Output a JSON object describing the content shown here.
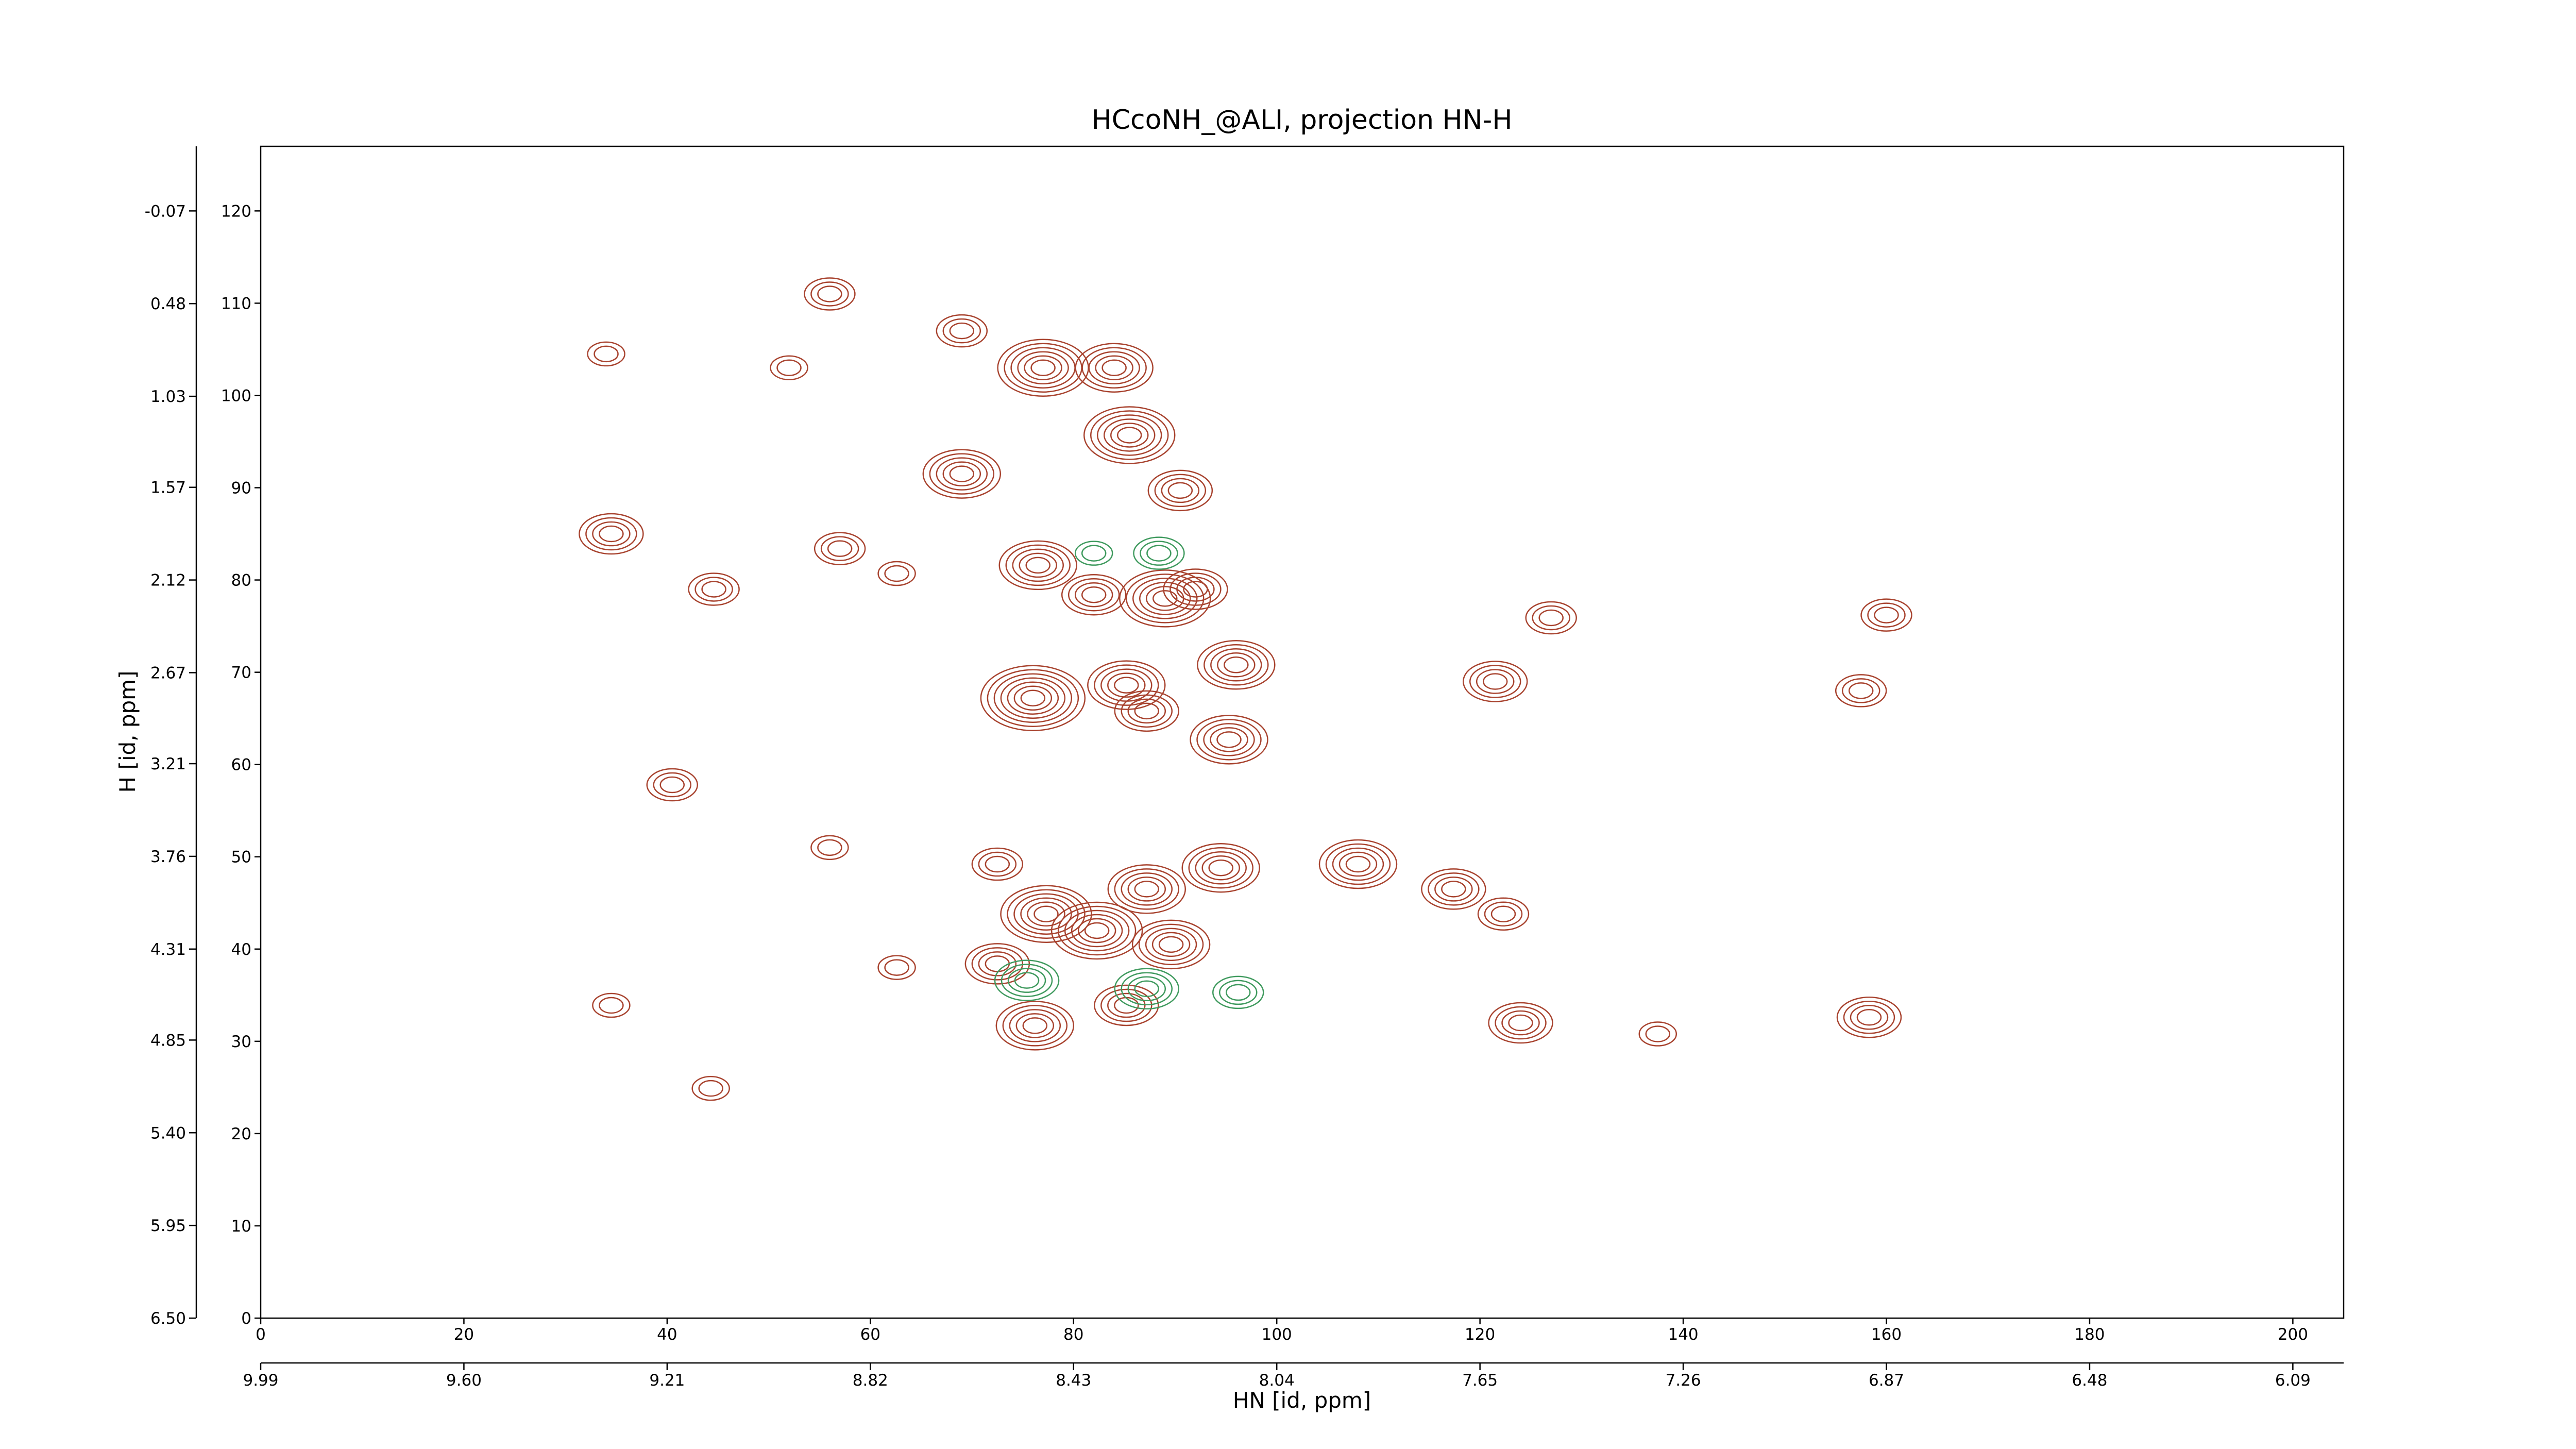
{
  "chart_data": {
    "type": "contour",
    "title": "HCcoNH_@ALI, projection HN-H",
    "xlabel": "HN [id, ppm]",
    "ylabel": "H [id, ppm]",
    "xlim": [
      0,
      205
    ],
    "xticks": [
      0,
      20,
      40,
      60,
      80,
      100,
      120,
      140,
      160,
      180,
      200
    ],
    "ylim": [
      0,
      127
    ],
    "yticks": [
      0,
      10,
      20,
      30,
      40,
      50,
      60,
      70,
      80,
      90,
      100,
      110,
      120
    ],
    "x2lim": [
      9.99,
      5.9925
    ],
    "x2ticks": [
      9.99,
      {
        "value": 9.6,
        "label": "9.60"
      },
      9.21,
      8.82,
      8.43,
      8.04,
      7.65,
      7.26,
      6.87,
      6.48,
      6.09
    ],
    "y2lim": [
      6.5,
      -0.4533
    ],
    "y2ticks": [
      {
        "value": 6.5,
        "label": "6.50"
      },
      5.95,
      {
        "value": 5.4,
        "label": "5.40"
      },
      4.85,
      4.31,
      3.76,
      3.21,
      2.67,
      2.12,
      1.57,
      1.03,
      0.48,
      -0.07
    ],
    "series": [
      {
        "color": "#a8432f",
        "peaks": [
          [
            34.5,
            85,
            4
          ],
          [
            44.6,
            79,
            3
          ],
          [
            34,
            104.5,
            2
          ],
          [
            56,
            111,
            3
          ],
          [
            52,
            103,
            2
          ],
          [
            69,
            107,
            3
          ],
          [
            77,
            103,
            6
          ],
          [
            84,
            103,
            5
          ],
          [
            69,
            91.5,
            5
          ],
          [
            85.5,
            95.7,
            6
          ],
          [
            90.5,
            89.7,
            4
          ],
          [
            76.5,
            81.6,
            5
          ],
          [
            82,
            78.4,
            4
          ],
          [
            89,
            78,
            6
          ],
          [
            92,
            79,
            4
          ],
          [
            96,
            70.8,
            5
          ],
          [
            76,
            67.2,
            7
          ],
          [
            85.2,
            68.6,
            5
          ],
          [
            87.2,
            65.8,
            4
          ],
          [
            95.3,
            62.7,
            5
          ],
          [
            72.5,
            49.2,
            3
          ],
          [
            87.2,
            46.5,
            5
          ],
          [
            94.5,
            48.8,
            5
          ],
          [
            77.3,
            43.8,
            6
          ],
          [
            82.3,
            42,
            6
          ],
          [
            89.6,
            40.5,
            5
          ],
          [
            72.5,
            38.4,
            4
          ],
          [
            76.2,
            31.7,
            5
          ],
          [
            85.2,
            33.9,
            4
          ],
          [
            108,
            49.2,
            5
          ],
          [
            117.4,
            46.5,
            4
          ],
          [
            122.3,
            43.8,
            3
          ],
          [
            121.5,
            69,
            4
          ],
          [
            124,
            32,
            4
          ],
          [
            127,
            75.9,
            3
          ],
          [
            137.5,
            30.8,
            2
          ],
          [
            157.5,
            68,
            3
          ],
          [
            158.3,
            32.6,
            4
          ],
          [
            160,
            76.2,
            3
          ],
          [
            57,
            83.4,
            3
          ],
          [
            62.6,
            80.7,
            2
          ],
          [
            62.6,
            38,
            2
          ],
          [
            40.5,
            57.8,
            3
          ],
          [
            44.3,
            24.9,
            2
          ],
          [
            34.5,
            33.9,
            2
          ],
          [
            56,
            51,
            2
          ]
        ]
      },
      {
        "color": "#3f9a5e",
        "peaks": [
          [
            75.4,
            36.6,
            4
          ],
          [
            87.2,
            35.7,
            4
          ],
          [
            96.2,
            35.3,
            3
          ],
          [
            88.4,
            82.9,
            3
          ],
          [
            82,
            82.9,
            2
          ]
        ]
      }
    ]
  }
}
